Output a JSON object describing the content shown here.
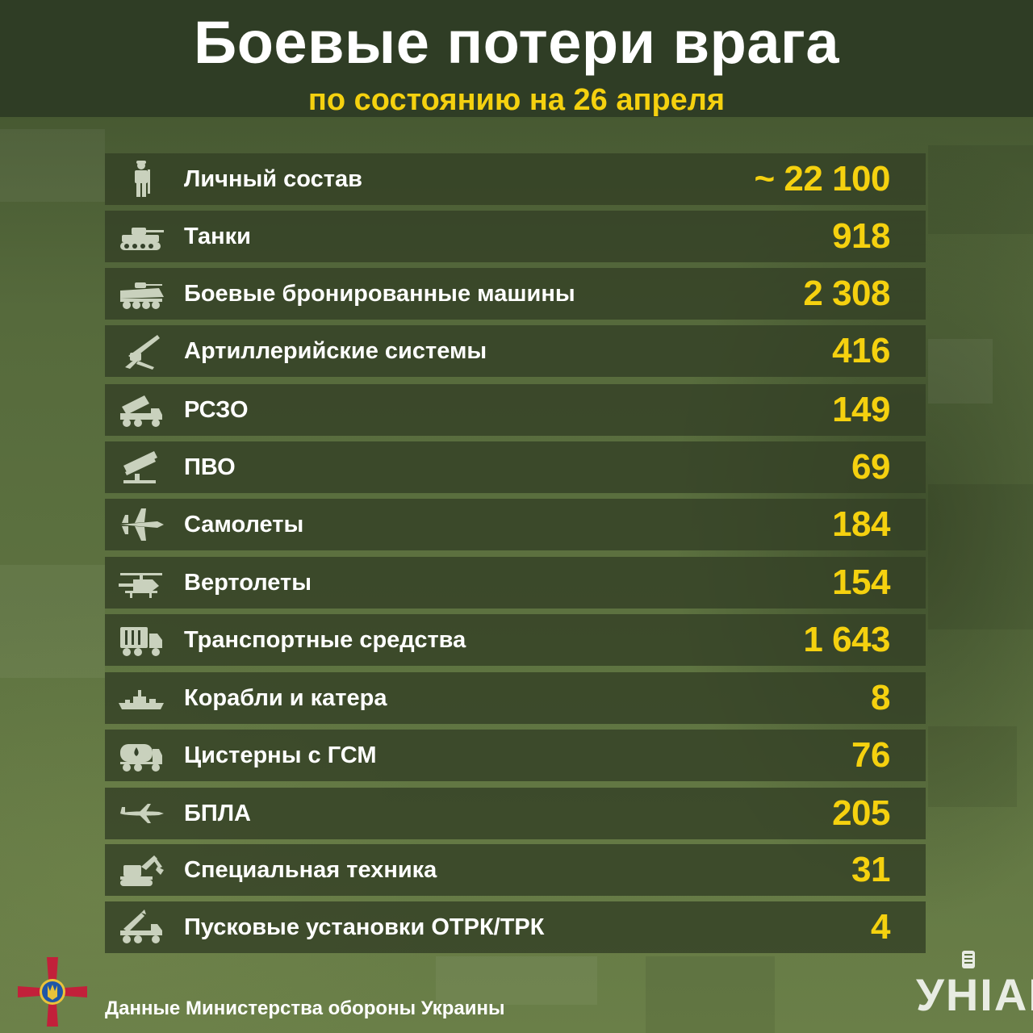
{
  "header": {
    "title": "Боевые потери врага",
    "subtitle": "по состоянию на 26 апреля"
  },
  "rows": [
    {
      "label": "Личный состав",
      "value": "~ 22 100",
      "icon": "soldier-icon"
    },
    {
      "label": "Танки",
      "value": "918",
      "icon": "tank-icon"
    },
    {
      "label": "Боевые бронированные машины",
      "value": "2 308",
      "icon": "apc-icon"
    },
    {
      "label": "Артиллерийские системы",
      "value": "416",
      "icon": "artillery-icon"
    },
    {
      "label": "РСЗО",
      "value": "149",
      "icon": "mlrs-icon"
    },
    {
      "label": "ПВО",
      "value": "69",
      "icon": "air-defense-icon"
    },
    {
      "label": "Самолеты",
      "value": "184",
      "icon": "jet-icon"
    },
    {
      "label": "Вертолеты",
      "value": "154",
      "icon": "helicopter-icon"
    },
    {
      "label": "Транспортные средства",
      "value": "1 643",
      "icon": "truck-icon"
    },
    {
      "label": "Корабли и катера",
      "value": "8",
      "icon": "ship-icon"
    },
    {
      "label": "Цистерны с ГСМ",
      "value": "76",
      "icon": "fuel-tank-icon"
    },
    {
      "label": "БПЛА",
      "value": "205",
      "icon": "drone-icon"
    },
    {
      "label": "Специальная техника",
      "value": "31",
      "icon": "excavator-icon"
    },
    {
      "label": "Пусковые установки ОТРК/ТРК",
      "value": "4",
      "icon": "missile-launcher-icon"
    }
  ],
  "footer": {
    "source": "Данные Министерства обороны Украины",
    "brand": "УНІАН"
  },
  "colors": {
    "accent": "#f5d10f",
    "header_bg": "#2f3d25",
    "row_bg": "#34412699",
    "text": "#ffffff"
  }
}
